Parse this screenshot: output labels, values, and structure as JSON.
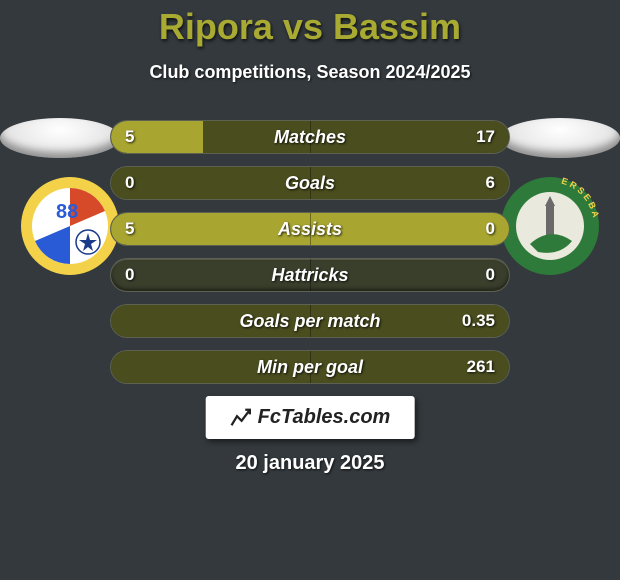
{
  "background_color": "#33393d",
  "title_color": "#a9aa32",
  "title": "Ripora vs Bassim",
  "subtitle": "Club competitions, Season 2024/2025",
  "date": "20 january 2025",
  "brand": "FcTables.com",
  "left_fill_color": "#a8a531",
  "right_fill_color": "#4a4d1e",
  "row_bg_color": "#3a3f2c",
  "rows": [
    {
      "label": "Matches",
      "left": "5",
      "right": "17",
      "left_pct": 23,
      "right_pct": 77
    },
    {
      "label": "Goals",
      "left": "0",
      "right": "6",
      "left_pct": 0,
      "right_pct": 100
    },
    {
      "label": "Assists",
      "left": "5",
      "right": "0",
      "left_pct": 100,
      "right_pct": 0
    },
    {
      "label": "Hattricks",
      "left": "0",
      "right": "0",
      "left_pct": 0,
      "right_pct": 0
    },
    {
      "label": "Goals per match",
      "left": "",
      "right": "0.35",
      "left_pct": 0,
      "right_pct": 100
    },
    {
      "label": "Min per goal",
      "left": "",
      "right": "261",
      "left_pct": 0,
      "right_pct": 100
    }
  ],
  "crest_left": {
    "outer": "#f3d24a",
    "inner": "#ffffff",
    "stripe1": "#d64a2a",
    "stripe2": "#2a5bd6",
    "number": "88",
    "number_color": "#2a5bd6"
  },
  "crest_right": {
    "outer": "#2e7a3a",
    "ring_text_color": "#f3d24a",
    "inner": "#e9e9dd",
    "accent": "#2e7a3a",
    "monument": "#6a6a6a"
  }
}
